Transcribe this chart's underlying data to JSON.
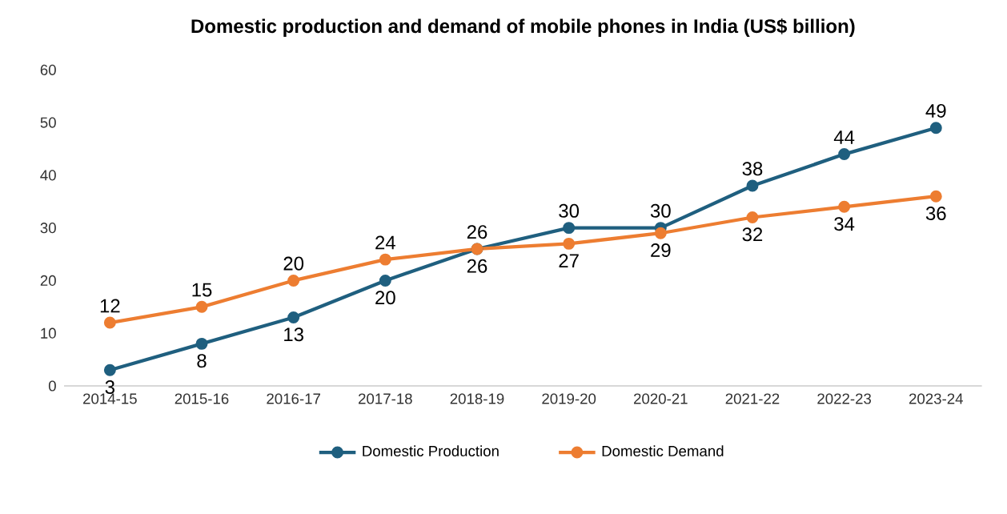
{
  "chart_data": {
    "type": "line",
    "title": "Domestic production and demand of mobile phones in India (US$ billion)",
    "categories": [
      "2014-15",
      "2015-16",
      "2016-17",
      "2017-18",
      "2018-19",
      "2019-20",
      "2020-21",
      "2021-22",
      "2022-23",
      "2023-24"
    ],
    "series": [
      {
        "name": "Domestic Production",
        "color": "#1f5f7f",
        "values": [
          3,
          8,
          13,
          20,
          26,
          30,
          30,
          38,
          44,
          49
        ]
      },
      {
        "name": "Domestic Demand",
        "color": "#ed7d31",
        "values": [
          12,
          15,
          20,
          24,
          26,
          27,
          29,
          32,
          34,
          36
        ]
      }
    ],
    "ylim": [
      0,
      60
    ],
    "yticks": [
      0,
      10,
      20,
      30,
      40,
      50,
      60
    ],
    "grid": false,
    "legend": "bottom",
    "marker": "circle",
    "line_style": "solid",
    "data_labels": true
  }
}
